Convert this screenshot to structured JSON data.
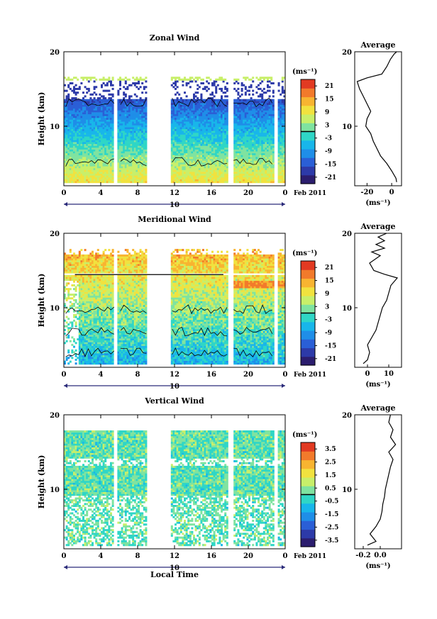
{
  "month_label": "Feb 2011",
  "date_marker": "10",
  "shared_xlabel": "Local Time",
  "chart_data": [
    {
      "type": "heatmap",
      "title": "Zonal Wind",
      "ylabel": "Height (km)",
      "xlabel": "",
      "xlim": [
        0,
        24
      ],
      "ylim": [
        2,
        20
      ],
      "x_ticks": [
        "0",
        "4",
        "8",
        "12",
        "16",
        "20",
        "0"
      ],
      "y_ticks": [
        "10",
        "20"
      ],
      "colorbar": {
        "unit": "(ms⁻¹)",
        "min": -24,
        "max": 24,
        "zero_line": 0,
        "ticks": [
          "21",
          "15",
          "9",
          "3",
          "-3",
          "-9",
          "-15",
          "-21"
        ]
      },
      "profile": {
        "title": "Average",
        "xlabel": "(ms⁻¹)",
        "xlim": [
          -30,
          8
        ],
        "x_ticks": [
          "-20",
          "0"
        ],
        "y_ticks": [
          "10",
          "20"
        ],
        "points": [
          [
            4,
            2.5
          ],
          [
            3.5,
            3
          ],
          [
            0,
            4
          ],
          [
            -4,
            5
          ],
          [
            -9,
            6
          ],
          [
            -12,
            7
          ],
          [
            -15,
            8
          ],
          [
            -17,
            9
          ],
          [
            -21,
            10
          ],
          [
            -20,
            11
          ],
          [
            -17,
            12
          ],
          [
            -20,
            13
          ],
          [
            -23,
            14
          ],
          [
            -26,
            15
          ],
          [
            -28,
            16
          ],
          [
            -20,
            16.5
          ],
          [
            -8,
            17
          ],
          [
            -4,
            18
          ],
          [
            -1,
            19
          ],
          [
            2,
            19.7
          ],
          [
            4,
            20
          ]
        ]
      },
      "gaps_hours": [
        [
          5.5,
          5.9
        ],
        [
          9.0,
          11.6
        ],
        [
          17.8,
          18.3
        ],
        [
          22.8,
          23.2
        ]
      ]
    },
    {
      "type": "heatmap",
      "title": "Meridional Wind",
      "ylabel": "Height (km)",
      "xlabel": "",
      "xlim": [
        0,
        24
      ],
      "ylim": [
        2,
        20
      ],
      "x_ticks": [
        "0",
        "4",
        "8",
        "12",
        "16",
        "20",
        "0"
      ],
      "y_ticks": [
        "10",
        "20"
      ],
      "colorbar": {
        "unit": "(ms⁻¹)",
        "min": -24,
        "max": 24,
        "zero_line": 0,
        "ticks": [
          "21",
          "15",
          "9",
          "3",
          "-3",
          "-9",
          "-15",
          "-21"
        ]
      },
      "profile": {
        "title": "Average",
        "xlabel": "(ms⁻¹)",
        "xlim": [
          -6,
          16
        ],
        "x_ticks": [
          "0",
          "10"
        ],
        "y_ticks": [
          "10",
          "20"
        ],
        "points": [
          [
            -2,
            2.5
          ],
          [
            0,
            3
          ],
          [
            1,
            4
          ],
          [
            0,
            5
          ],
          [
            2,
            6
          ],
          [
            4,
            7
          ],
          [
            5,
            8
          ],
          [
            6,
            9
          ],
          [
            7,
            10
          ],
          [
            9,
            11
          ],
          [
            10,
            12
          ],
          [
            11,
            13
          ],
          [
            14,
            14
          ],
          [
            8,
            14.5
          ],
          [
            3,
            15
          ],
          [
            1,
            16
          ],
          [
            6,
            17
          ],
          [
            2,
            17.5
          ],
          [
            8,
            18
          ],
          [
            4,
            18.5
          ],
          [
            8,
            19
          ],
          [
            5,
            19.5
          ],
          [
            9,
            20
          ]
        ]
      },
      "gaps_hours": [
        [
          5.5,
          5.9
        ],
        [
          9.0,
          11.6
        ],
        [
          17.8,
          18.3
        ],
        [
          22.8,
          23.2
        ]
      ]
    },
    {
      "type": "heatmap",
      "title": "Vertical Wind",
      "ylabel": "Height (km)",
      "xlabel": "Local Time",
      "xlim": [
        0,
        24
      ],
      "ylim": [
        2,
        20
      ],
      "x_ticks": [
        "0",
        "4",
        "8",
        "12",
        "16",
        "20",
        "0"
      ],
      "y_ticks": [
        "10",
        "20"
      ],
      "colorbar": {
        "unit": "(ms⁻¹)",
        "min": -4,
        "max": 4,
        "zero_line": 0,
        "ticks": [
          "3.5",
          "2.5",
          "1.5",
          "0.5",
          "-0.5",
          "-1.5",
          "-2.5",
          "-3.5"
        ]
      },
      "profile": {
        "title": "Average",
        "xlabel": "(ms⁻¹)",
        "xlim": [
          -0.3,
          0.25
        ],
        "x_ticks": [
          "-0.2",
          "0.0"
        ],
        "y_ticks": [
          "10",
          "20"
        ],
        "points": [
          [
            -0.15,
            2.5
          ],
          [
            -0.05,
            3
          ],
          [
            -0.12,
            4
          ],
          [
            -0.05,
            5
          ],
          [
            0.0,
            6
          ],
          [
            0.02,
            7
          ],
          [
            0.03,
            8
          ],
          [
            0.05,
            9
          ],
          [
            0.06,
            10
          ],
          [
            0.08,
            11
          ],
          [
            0.1,
            12
          ],
          [
            0.12,
            13
          ],
          [
            0.15,
            14
          ],
          [
            0.1,
            15
          ],
          [
            0.18,
            16
          ],
          [
            0.12,
            17
          ],
          [
            0.15,
            18
          ],
          [
            0.1,
            19
          ],
          [
            0.12,
            20
          ]
        ]
      },
      "gaps_hours": [
        [
          5.5,
          5.9
        ],
        [
          9.0,
          11.6
        ],
        [
          17.8,
          18.3
        ],
        [
          22.8,
          23.2
        ]
      ]
    }
  ],
  "colormap": [
    "#2b1d6e",
    "#2d3aa8",
    "#2a5fd6",
    "#1f8ee8",
    "#18b6ea",
    "#2fd6c6",
    "#7fe3a0",
    "#c8ef6a",
    "#f1e23f",
    "#f8b431",
    "#f27a2b",
    "#e23a22"
  ]
}
